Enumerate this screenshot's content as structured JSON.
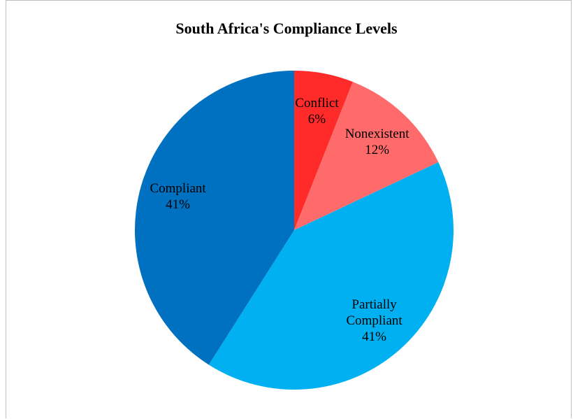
{
  "chart_data": {
    "type": "pie",
    "title": "South Africa's Compliance Levels",
    "categories": [
      "Conflict",
      "Nonexistent",
      "Partially Compliant",
      "Compliant"
    ],
    "values": [
      6,
      12,
      41,
      41
    ],
    "value_labels": [
      "6%",
      "12%",
      "41%",
      "41%"
    ],
    "colors": [
      "#ff2b2b",
      "#ff6b6b",
      "#00b0f0",
      "#0070c0"
    ]
  }
}
